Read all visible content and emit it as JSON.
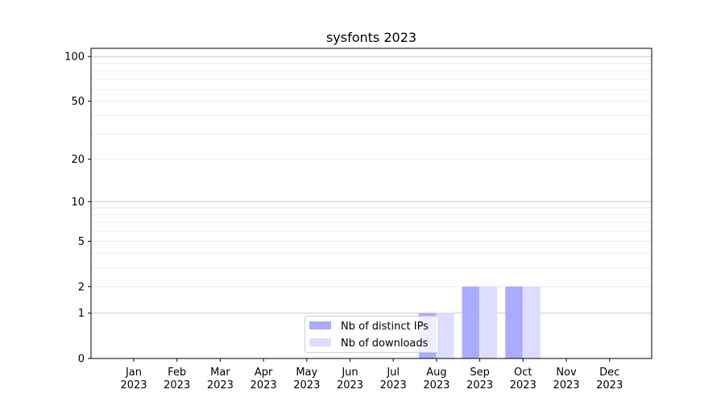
{
  "chart_data": {
    "type": "bar",
    "title": "sysfonts 2023",
    "xlabel": "",
    "ylabel": "",
    "yscale": "log(1+y)",
    "ylim": [
      0,
      113
    ],
    "yticks": [
      0,
      1,
      2,
      5,
      10,
      20,
      50,
      100
    ],
    "ytick_labels": [
      "0",
      "1",
      "2",
      "5",
      "10",
      "20",
      "50",
      "100"
    ],
    "grid": "horizontal, major and minor",
    "legend_placement": "lower-center",
    "categories": [
      "Jan\n2023",
      "Feb\n2023",
      "Mar\n2023",
      "Apr\n2023",
      "May\n2023",
      "Jun\n2023",
      "Jul\n2023",
      "Aug\n2023",
      "Sep\n2023",
      "Oct\n2023",
      "Nov\n2023",
      "Dec\n2023"
    ],
    "series": [
      {
        "name": "Nb of distinct IPs",
        "color": "#aaaaff",
        "values": [
          0,
          0,
          0,
          0,
          0,
          0,
          0,
          1,
          2,
          2,
          0,
          0
        ]
      },
      {
        "name": "Nb of downloads",
        "color": "#ddddff",
        "values": [
          0,
          0,
          0,
          0,
          0,
          0,
          0,
          1,
          2,
          2,
          0,
          0
        ]
      }
    ]
  }
}
